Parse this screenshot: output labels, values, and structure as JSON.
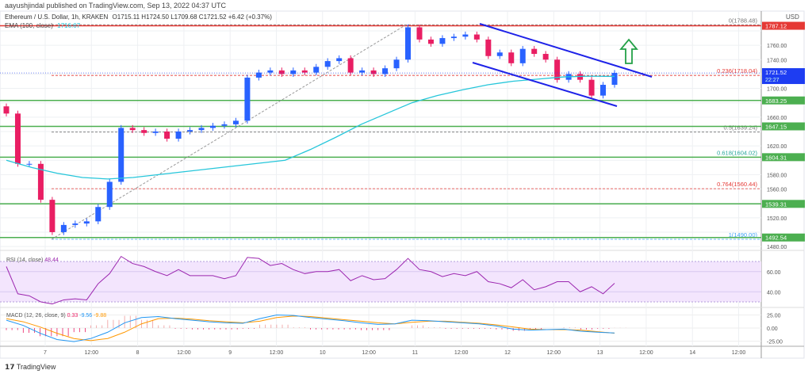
{
  "header": {
    "published": "aayushjindal published on TradingView.com, Sep 13, 2022 04:37 UTC"
  },
  "legend": {
    "symbol": "Ethereum / U.S. Dollar, 1h, KRAKEN",
    "ohlc": "O1715.11 H1724.50 L1709.68 C1721.52 +6.42 (+0.37%)",
    "ema_label": "EMA (100, close)",
    "ema_value": "1716.67"
  },
  "colors": {
    "up": "#2962ff",
    "down": "#e91e63",
    "ema": "#26c6da",
    "support": "#4caf50",
    "resistance": "#e53935",
    "channel": "#1e22e8",
    "arrow": "#24a148",
    "rsi": "#9c27b0",
    "macd": "#2196f3",
    "signal": "#ff9800"
  },
  "chart_data": {
    "type": "candlestick",
    "currency": "USD",
    "ylim": [
      1475,
      1795
    ],
    "y_ticks": [
      "1780.00",
      "1760.00",
      "1740.00",
      "1720.00",
      "1700.00",
      "1680.00",
      "1660.00",
      "1640.00",
      "1620.00",
      "1600.00",
      "1580.00",
      "1560.00",
      "1540.00",
      "1520.00",
      "1500.00",
      "1480.00"
    ],
    "x_ticks": [
      "7",
      "12:00",
      "8",
      "12:00",
      "9",
      "12:00",
      "10",
      "12:00",
      "11",
      "12:00",
      "12",
      "12:00",
      "13",
      "12:00",
      "14",
      "12:00"
    ],
    "candles": [
      [
        1675,
        1665
      ],
      [
        1665,
        1595
      ],
      [
        1595,
        1595
      ],
      [
        1595,
        1545
      ],
      [
        1545,
        1500
      ],
      [
        1500,
        1510
      ],
      [
        1510,
        1512
      ],
      [
        1512,
        1515
      ],
      [
        1515,
        1535
      ],
      [
        1535,
        1570
      ],
      [
        1570,
        1645
      ],
      [
        1645,
        1642
      ],
      [
        1642,
        1638
      ],
      [
        1638,
        1640
      ],
      [
        1640,
        1630
      ],
      [
        1630,
        1640
      ],
      [
        1640,
        1642
      ],
      [
        1642,
        1645
      ],
      [
        1645,
        1648
      ],
      [
        1648,
        1650
      ],
      [
        1650,
        1655
      ],
      [
        1655,
        1715
      ],
      [
        1715,
        1722
      ],
      [
        1722,
        1725
      ],
      [
        1725,
        1720
      ],
      [
        1720,
        1725
      ],
      [
        1725,
        1722
      ],
      [
        1722,
        1730
      ],
      [
        1730,
        1738
      ],
      [
        1738,
        1742
      ],
      [
        1742,
        1722
      ],
      [
        1722,
        1725
      ],
      [
        1725,
        1720
      ],
      [
        1720,
        1728
      ],
      [
        1728,
        1740
      ],
      [
        1740,
        1785
      ],
      [
        1785,
        1768
      ],
      [
        1768,
        1762
      ],
      [
        1762,
        1770
      ],
      [
        1770,
        1772
      ],
      [
        1772,
        1775
      ],
      [
        1775,
        1768
      ],
      [
        1768,
        1745
      ],
      [
        1745,
        1750
      ],
      [
        1750,
        1735
      ],
      [
        1735,
        1755
      ],
      [
        1755,
        1748
      ],
      [
        1748,
        1740
      ],
      [
        1740,
        1712
      ],
      [
        1712,
        1720
      ],
      [
        1720,
        1712
      ],
      [
        1712,
        1690
      ],
      [
        1690,
        1705
      ],
      [
        1705,
        1721.52
      ]
    ],
    "ema100": [
      1600,
      1590,
      1582,
      1576,
      1574,
      1576,
      1580,
      1584,
      1588,
      1592,
      1596,
      1600,
      1615,
      1632,
      1650,
      1665,
      1680,
      1690,
      1698,
      1705,
      1710,
      1713,
      1716,
      1717,
      1716.67
    ],
    "price_labels": {
      "last": "1721.52",
      "countdown": "22:27",
      "high_line": "1787.12"
    },
    "horizontal_levels": [
      {
        "value": 1787.12,
        "label": "",
        "kind": "resistance"
      },
      {
        "value": 1683.25,
        "label": "1683.25",
        "kind": "support"
      },
      {
        "value": 1647.15,
        "label": "1647.15",
        "kind": "support"
      },
      {
        "value": 1604.31,
        "label": "1604.31",
        "kind": "support"
      },
      {
        "value": 1539.31,
        "label": "1539.31",
        "kind": "support"
      },
      {
        "value": 1492.54,
        "label": "1492.54",
        "kind": "support"
      }
    ],
    "fibonacci": [
      {
        "value": 1788.48,
        "label": "0(1788.48)",
        "color": "#777777"
      },
      {
        "value": 1718.04,
        "label": "0.236(1718.04)",
        "color": "#e53935"
      },
      {
        "value": 1639.24,
        "label": "0.5(1639.24)",
        "color": "#777777"
      },
      {
        "value": 1604.02,
        "label": "0.618(1604.02)",
        "color": "#26a69a"
      },
      {
        "value": 1560.44,
        "label": "0.764(1560.44)",
        "color": "#e53935"
      },
      {
        "value": 1490.0,
        "label": "1(1490.00)",
        "color": "#42a5f5"
      }
    ],
    "rsi": {
      "label": "RSI (14, close)",
      "value": "48.44",
      "ticks": [
        "60.00",
        "40.00"
      ],
      "values": [
        65,
        38,
        36,
        30,
        28,
        32,
        33,
        32,
        48,
        58,
        75,
        68,
        65,
        60,
        56,
        62,
        56,
        56,
        56,
        53,
        56,
        74,
        73,
        66,
        68,
        62,
        58,
        60,
        60,
        62,
        51,
        56,
        52,
        53,
        62,
        73,
        62,
        60,
        55,
        58,
        56,
        60,
        50,
        48,
        44,
        52,
        42,
        45,
        50,
        50,
        40,
        45,
        38,
        48.44
      ]
    },
    "macd": {
      "label": "MACD (12, 26, close, 9)",
      "hist_value": "0.33",
      "macd_value": "-9.56",
      "signal_value": "-9.88",
      "ticks": [
        "25.00",
        "0.00",
        "-25.00"
      ],
      "macd": [
        15,
        5,
        -10,
        -22,
        -26,
        -20,
        -8,
        10,
        20,
        22,
        18,
        15,
        12,
        10,
        9,
        18,
        25,
        24,
        20,
        17,
        14,
        10,
        7,
        8,
        15,
        14,
        12,
        10,
        8,
        4,
        -2,
        -4,
        -3,
        -2,
        -6,
        -8,
        -9.56
      ],
      "signal": [
        18,
        12,
        2,
        -10,
        -20,
        -24,
        -20,
        -8,
        8,
        18,
        19,
        17,
        14,
        12,
        10,
        13,
        20,
        23,
        22,
        19,
        16,
        13,
        10,
        8,
        11,
        13,
        13,
        11,
        9,
        6,
        2,
        -2,
        -3,
        -3,
        -4,
        -7,
        -9.88
      ]
    }
  },
  "footer": {
    "brand": "TradingView"
  }
}
